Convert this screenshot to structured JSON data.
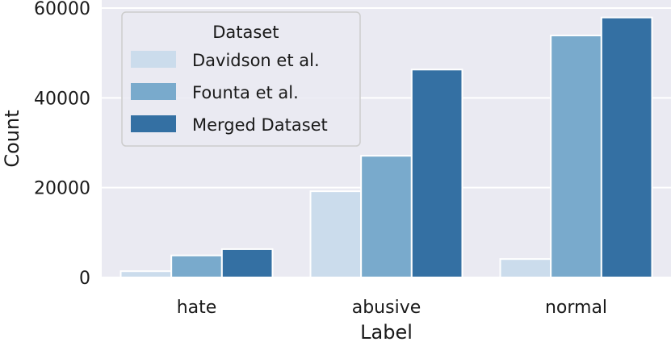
{
  "chart_data": {
    "type": "bar",
    "categories": [
      "hate",
      "abusive",
      "normal"
    ],
    "series": [
      {
        "name": "Davidson et al.",
        "values": [
          1400,
          19200,
          4100
        ],
        "color": "#cbdcec"
      },
      {
        "name": "Founta et al.",
        "values": [
          4900,
          27100,
          53900
        ],
        "color": "#79aacc"
      },
      {
        "name": "Merged Dataset",
        "values": [
          6300,
          46300,
          57900
        ],
        "color": "#3470a3"
      }
    ],
    "xlabel": "Label",
    "ylabel": "Count",
    "ylim": [
      0,
      60000
    ],
    "yticks": [
      0,
      20000,
      40000,
      60000
    ],
    "ytick_labels": [
      "0",
      "20000",
      "40000",
      "60000"
    ],
    "legend_title": "Dataset",
    "legend_position": "upper-left",
    "grid": true,
    "background_color": "#eaeaf2",
    "grid_color": "#ffffff"
  }
}
